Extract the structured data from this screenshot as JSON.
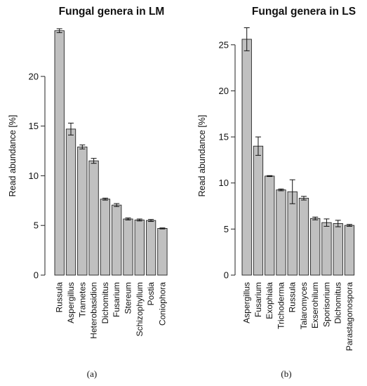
{
  "chart_data": [
    {
      "type": "bar",
      "title": "Fungal genera in LM",
      "ylabel": "Read abundance [%]",
      "xlabel": "",
      "panel_label": "(a)",
      "ylim": [
        0,
        25.5
      ],
      "yticks": [
        0,
        5,
        10,
        15,
        20
      ],
      "grid": false,
      "categories": [
        "Russula",
        "Aspergillus",
        "Trametes",
        "Heterobasidion",
        "Dichomitus",
        "Fusarium",
        "Stereum",
        "Schizophyllum",
        "Postia",
        "Coniophora"
      ],
      "values": [
        24.6,
        14.7,
        12.9,
        11.5,
        7.65,
        7.05,
        5.65,
        5.55,
        5.5,
        4.7
      ],
      "errors": [
        0.2,
        0.6,
        0.2,
        0.25,
        0.1,
        0.15,
        0.1,
        0.1,
        0.1,
        0.05
      ],
      "bar_color": "#c0c0c0"
    },
    {
      "type": "bar",
      "title": "Fungal genera in LS",
      "ylabel": "Read abundance [%]",
      "xlabel": "",
      "panel_label": "(b)",
      "ylim": [
        0,
        27.5
      ],
      "yticks": [
        0,
        5,
        10,
        15,
        20,
        25
      ],
      "grid": false,
      "categories": [
        "Aspergillus",
        "Fusarium",
        "Exophiala",
        "Trichoderma",
        "Russula",
        "Talaromyces",
        "Exserohilum",
        "Sporisorium",
        "Dichomitus",
        "Parastagonospora"
      ],
      "values": [
        25.6,
        14.0,
        10.75,
        9.25,
        9.05,
        8.35,
        6.15,
        5.7,
        5.6,
        5.4
      ],
      "errors": [
        1.25,
        1.0,
        0.05,
        0.1,
        1.3,
        0.2,
        0.15,
        0.4,
        0.35,
        0.1
      ],
      "bar_color": "#c0c0c0"
    }
  ]
}
